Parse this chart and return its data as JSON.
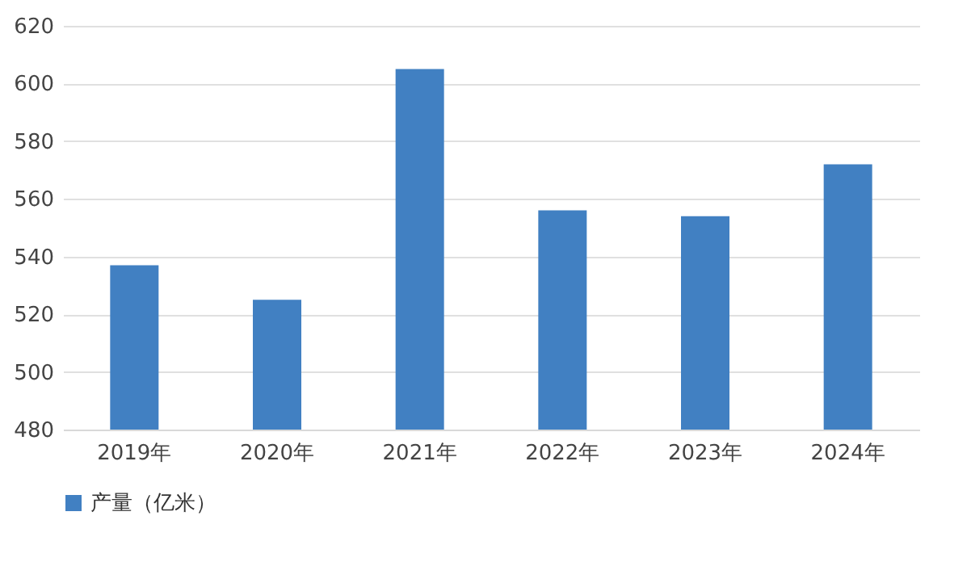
{
  "chart_data": {
    "type": "bar",
    "categories": [
      "2019年",
      "2020年",
      "2021年",
      "2022年",
      "2023年",
      "2024年"
    ],
    "series": [
      {
        "name": "产量（亿米）",
        "color": "#4180c2",
        "values": [
          537,
          525,
          605,
          556,
          554,
          572
        ]
      }
    ],
    "ylim": [
      480,
      620
    ],
    "yticks": [
      480,
      500,
      520,
      540,
      560,
      580,
      600,
      620
    ],
    "grid": "y",
    "legend": "bottom"
  }
}
